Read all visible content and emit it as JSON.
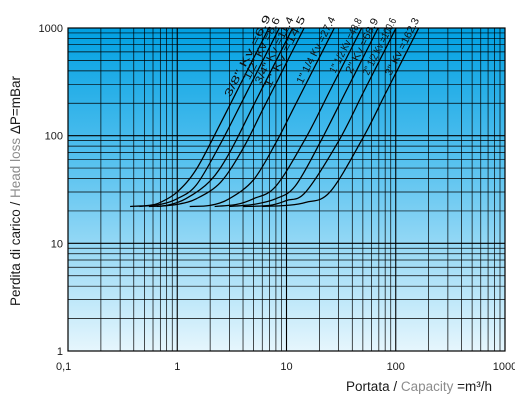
{
  "chart_data": {
    "type": "line",
    "x_scale": "log",
    "y_scale": "log",
    "xlim": [
      0.1,
      1000
    ],
    "ylim": [
      1,
      1000
    ],
    "grid": true,
    "x_ticks": [
      {
        "value": 0.1,
        "label": "0,1"
      },
      {
        "value": 1,
        "label": "1"
      },
      {
        "value": 10,
        "label": "10"
      },
      {
        "value": 100,
        "label": "100"
      },
      {
        "value": 1000,
        "label": "1000"
      }
    ],
    "y_ticks": [
      {
        "value": 1,
        "label": "1"
      },
      {
        "value": 10,
        "label": "10"
      },
      {
        "value": 100,
        "label": "100"
      },
      {
        "value": 1000,
        "label": "1000"
      }
    ],
    "xlabel": {
      "prefix": "Portata / ",
      "muted": "Capacity",
      "suffix": " =m³/h"
    },
    "ylabel": {
      "prefix": "Perdita di carico / ",
      "muted": "Head loss",
      "suffix": " ΔP=mBar"
    },
    "series": [
      {
        "name": "3/8\" Kv =6.9",
        "kv": 6.9,
        "x_start": 0.37,
        "y_start": 22,
        "x": [
          0.37,
          0.55,
          0.7,
          1.0,
          1.5,
          2.5,
          4.0,
          6.9
        ],
        "y": [
          22,
          22.5,
          24,
          30,
          49,
          131,
          336,
          1000
        ]
      },
      {
        "name": "1/2\" Kv =8.6",
        "kv": 8.6,
        "x_start": 0.45,
        "y_start": 22,
        "x": [
          0.45,
          0.7,
          1.0,
          1.5,
          2.5,
          4.0,
          6.0,
          8.6
        ],
        "y": [
          22,
          23,
          26,
          35,
          85,
          216,
          487,
          1000
        ]
      },
      {
        "name": "3/4\" Kv =11.4",
        "kv": 11.4,
        "x_start": 0.55,
        "y_start": 22,
        "x": [
          0.55,
          0.8,
          1.2,
          2.0,
          3.0,
          5.0,
          8.0,
          11.4
        ],
        "y": [
          22,
          22.5,
          26,
          38,
          69,
          192,
          492,
          1000
        ]
      },
      {
        "name": "1\" Kv =14.5",
        "kv": 14.5,
        "x_start": 0.65,
        "y_start": 22,
        "x": [
          0.65,
          1.0,
          1.5,
          2.5,
          4.0,
          6.0,
          10.0,
          14.5
        ],
        "y": [
          22,
          23,
          26,
          37,
          76,
          171,
          476,
          1000
        ]
      },
      {
        "name": "1\" 1/4 Kv =27.4",
        "kv": 27.4,
        "x_start": 1.3,
        "y_start": 22,
        "x": [
          1.3,
          2.0,
          3.0,
          5.0,
          8.0,
          12.0,
          20.0,
          27.4
        ],
        "y": [
          22,
          22.5,
          26,
          39,
          86,
          192,
          533,
          1000
        ]
      },
      {
        "name": "1\" 1/2 Kv =48.8",
        "kv": 48.8,
        "x_start": 2.2,
        "y_start": 22,
        "x": [
          2.2,
          3.5,
          5.0,
          8.0,
          15.0,
          25.0,
          35.0,
          48.8
        ],
        "y": [
          22,
          23,
          26,
          34,
          95,
          262,
          514,
          1000
        ]
      },
      {
        "name": "2\" Kv =68.9",
        "kv": 68.9,
        "x_start": 3.0,
        "y_start": 22,
        "x": [
          3.0,
          5.0,
          8.0,
          12.0,
          20.0,
          35.0,
          50.0,
          68.9
        ],
        "y": [
          22,
          23,
          26,
          34,
          84,
          258,
          527,
          1000
        ]
      },
      {
        "name": "2\" 1/2 Kv =100.6",
        "kv": 100.6,
        "x_start": 4.0,
        "y_start": 22,
        "x": [
          4.0,
          7.0,
          10.0,
          15.0,
          30.0,
          50.0,
          70.0,
          100.6
        ],
        "y": [
          22,
          22.5,
          25,
          30,
          89,
          247,
          484,
          1000
        ]
      },
      {
        "name": "3\" Kv =162.3",
        "kv": 162.3,
        "x_start": 6.0,
        "y_start": 22,
        "x": [
          6.0,
          10.0,
          15.0,
          25.0,
          50.0,
          80.0,
          120.0,
          162.3
        ],
        "y": [
          22,
          22.5,
          24,
          30,
          95,
          243,
          547,
          1000
        ]
      }
    ]
  }
}
